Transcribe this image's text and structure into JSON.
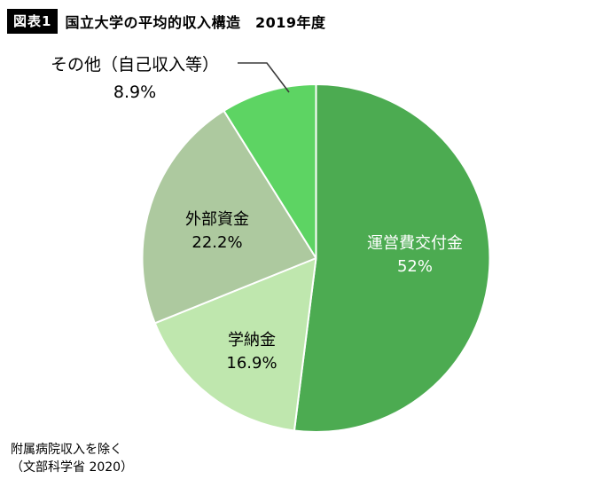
{
  "header": {
    "badge": "図表1",
    "title": "国立大学の平均的収入構造　2019年度"
  },
  "chart_data": {
    "type": "pie",
    "title": "国立大学の平均的収入構造 2019年度",
    "start_angle_deg": 0,
    "direction": "clockwise",
    "legend_position": "none",
    "slices": [
      {
        "label": "運営費交付金",
        "value": 52,
        "display": "52%",
        "color": "#4cab51",
        "label_color": "#ffffff",
        "label_position": "inside"
      },
      {
        "label": "学納金",
        "value": 16.9,
        "display": "16.9%",
        "color": "#bfe7ae",
        "label_color": "#000000",
        "label_position": "inside"
      },
      {
        "label": "外部資金",
        "value": 22.2,
        "display": "22.2%",
        "color": "#adc99f",
        "label_color": "#000000",
        "label_position": "inside"
      },
      {
        "label": "その他（自己収入等）",
        "value": 8.9,
        "display": "8.9%",
        "color": "#5dd463",
        "label_color": "#000000",
        "label_position": "outside-callout"
      }
    ]
  },
  "footnote": {
    "line1": "附属病院収入を除く",
    "line2": "（文部科学省 2020）"
  }
}
